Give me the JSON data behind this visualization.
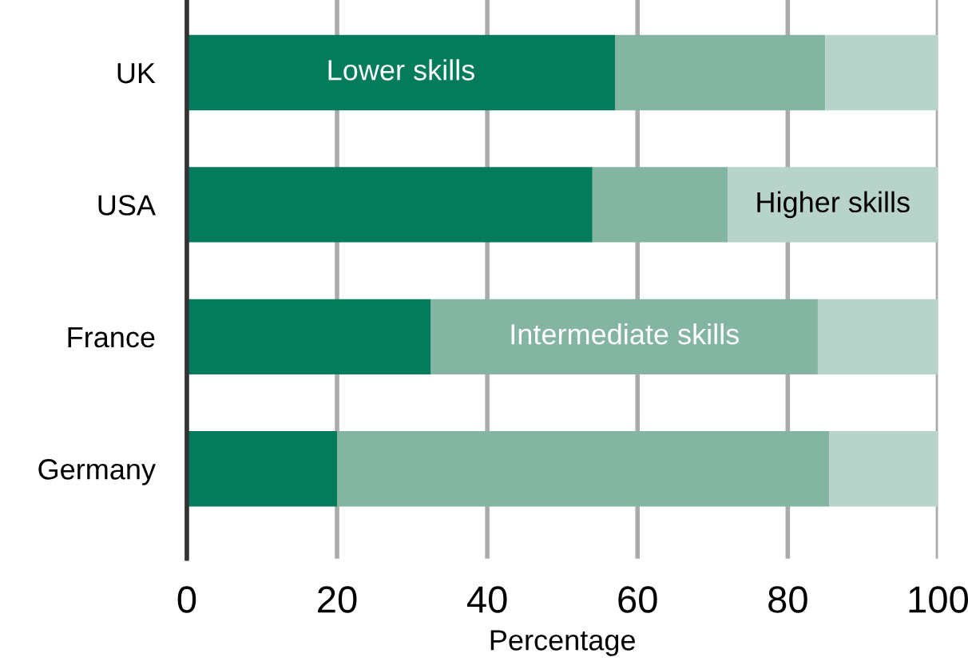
{
  "chart_data": {
    "type": "bar",
    "orientation": "horizontal",
    "stacked": true,
    "xlabel": "Percentage",
    "categories": [
      "UK",
      "USA",
      "France",
      "Germany"
    ],
    "series": [
      {
        "name": "Lower skills",
        "color": "#047c5c",
        "values": [
          57,
          54,
          32.5,
          20
        ]
      },
      {
        "name": "Intermediate skills",
        "color": "#84b5a2",
        "values": [
          28,
          18,
          51.5,
          65.5
        ]
      },
      {
        "name": "Higher skills",
        "color": "#b8d4ca",
        "values": [
          15,
          28,
          16,
          14.5
        ]
      }
    ],
    "xlim": [
      0,
      100
    ],
    "xticks": [
      0,
      20,
      40,
      60,
      80,
      100
    ],
    "grid": "x",
    "legend": false
  }
}
